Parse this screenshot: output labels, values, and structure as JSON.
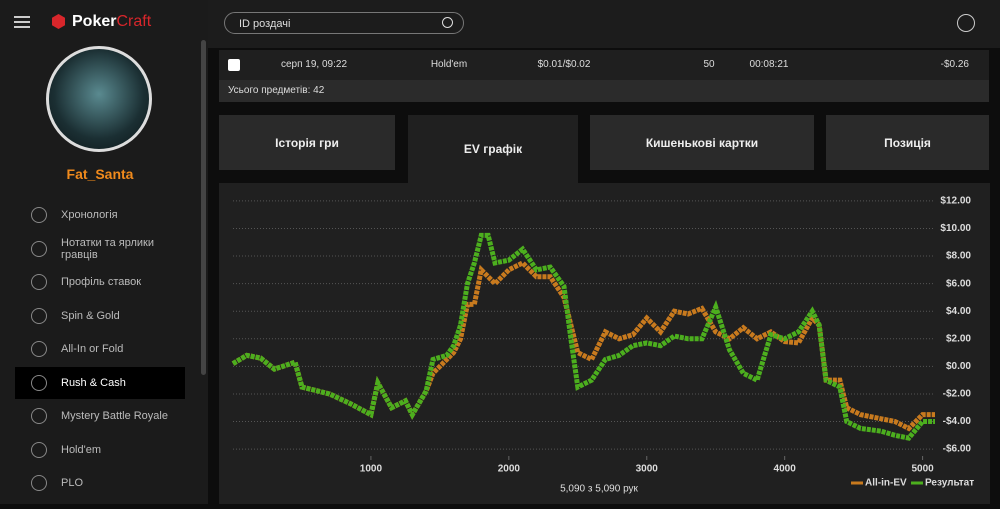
{
  "sidebar": {
    "logo": {
      "first": "Poker",
      "second": "Craft"
    },
    "username": "Fat_Santa",
    "menu": [
      "Хронологія",
      "Нотатки та ярлики гравців",
      "Профіль ставок",
      "Spin & Gold",
      "All-In or Fold",
      "Rush & Cash",
      "Mystery Battle Royale",
      "Hold'em",
      "PLO"
    ],
    "active": 5
  },
  "search": {
    "placeholder": "ID роздачі"
  },
  "table": {
    "rows": [
      [
        "серп 19, 09:22",
        "Hold'em",
        "$0.01/$0.02",
        "50",
        "00:08:21",
        "-$0.26"
      ]
    ],
    "total": "Усього предметів: 42"
  },
  "tabs": {
    "items": [
      "Історія гри",
      "EV графік",
      "Кишенькові картки",
      "Позиція"
    ],
    "active": 1
  },
  "chart_data": {
    "type": "line",
    "x": [
      0,
      100,
      200,
      300,
      450,
      500,
      700,
      850,
      1000,
      1050,
      1150,
      1250,
      1300,
      1400,
      1450,
      1550,
      1600,
      1650,
      1700,
      1750,
      1800,
      1850,
      1900,
      2000,
      2100,
      2200,
      2300,
      2400,
      2450,
      2500,
      2600,
      2700,
      2800,
      2900,
      3000,
      3100,
      3200,
      3300,
      3400,
      3500,
      3600,
      3700,
      3800,
      3900,
      4000,
      4100,
      4200,
      4250,
      4300,
      4400,
      4450,
      4550,
      4700,
      4800,
      4900,
      5000,
      5090
    ],
    "series": [
      {
        "name": "All-in-EV",
        "color": "#c87a1e",
        "values": [
          0.2,
          0.8,
          0.6,
          -0.2,
          0.3,
          -1.5,
          -2.0,
          -2.7,
          -3.5,
          -1.2,
          -3.0,
          -2.5,
          -3.5,
          -1.8,
          -0.5,
          0.5,
          1.0,
          2.0,
          4.5,
          4.5,
          7.0,
          6.5,
          6.0,
          7.0,
          7.5,
          6.5,
          6.5,
          5.0,
          3.0,
          1.0,
          0.5,
          2.5,
          2.0,
          2.3,
          3.5,
          2.5,
          4.0,
          3.8,
          4.2,
          2.5,
          2.0,
          2.8,
          2.0,
          2.5,
          1.8,
          1.7,
          3.5,
          3.0,
          -1.0,
          -1.0,
          -3.0,
          -3.5,
          -3.8,
          -4.0,
          -4.5,
          -3.5,
          -3.5
        ]
      },
      {
        "name": "Результат",
        "color": "#4caf1e",
        "values": [
          0.2,
          0.8,
          0.6,
          -0.2,
          0.3,
          -1.5,
          -2.0,
          -2.7,
          -3.5,
          -1.2,
          -3.0,
          -2.5,
          -3.5,
          -1.8,
          0.5,
          0.8,
          1.5,
          3.0,
          6.0,
          7.5,
          9.5,
          9.5,
          7.5,
          7.7,
          8.5,
          7.0,
          7.2,
          5.8,
          2.0,
          -1.5,
          -1.0,
          0.5,
          0.8,
          1.5,
          1.7,
          1.5,
          2.2,
          2.0,
          2.0,
          4.3,
          1.2,
          -0.5,
          -1.0,
          2.3,
          2.0,
          2.5,
          4.0,
          3.0,
          -1.0,
          -1.5,
          -4.0,
          -4.5,
          -4.7,
          -5.0,
          -5.2,
          -4.0,
          -4.0
        ]
      }
    ],
    "xlim": [
      0,
      5090
    ],
    "xticks": [
      1000,
      2000,
      3000,
      4000,
      5000
    ],
    "ylim": [
      -6.5,
      12.5
    ],
    "yticks": [
      {
        "value": 12,
        "label": "$12.00"
      },
      {
        "value": 10,
        "label": "$10.00"
      },
      {
        "value": 8,
        "label": "$8.00"
      },
      {
        "value": 6,
        "label": "$6.00"
      },
      {
        "value": 4,
        "label": "$4.00"
      },
      {
        "value": 2,
        "label": "$2.00"
      },
      {
        "value": 0,
        "label": "$0.00"
      },
      {
        "value": -2,
        "label": "-$2.00"
      },
      {
        "value": -4,
        "label": "-$4.00"
      },
      {
        "value": -6,
        "label": "-$6.00"
      }
    ],
    "grid": true,
    "footer": "5,090 з 5,090 рук"
  }
}
